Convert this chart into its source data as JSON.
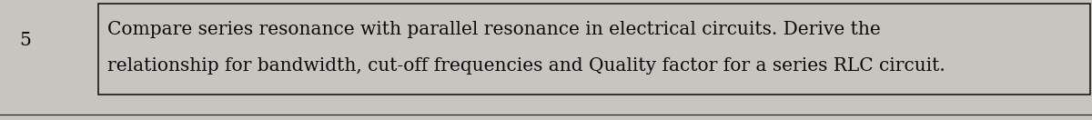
{
  "background_color": "#c8c4c0",
  "box_bg_color": "#c8c4c0",
  "border_color": "#1a1a1a",
  "border_linewidth": 1.2,
  "line1": "Compare series resonance with parallel resonance in electrical circuits. Derive the",
  "line2": "relationship for bandwidth, cut-off frequencies and Quality factor for a series RLC circuit.",
  "number_label": "5",
  "font_size": 14.5,
  "font_family": "DejaVu Serif",
  "text_color": "#0a0a0a",
  "fig_width": 12.0,
  "fig_height": 1.32,
  "dpi": 100
}
